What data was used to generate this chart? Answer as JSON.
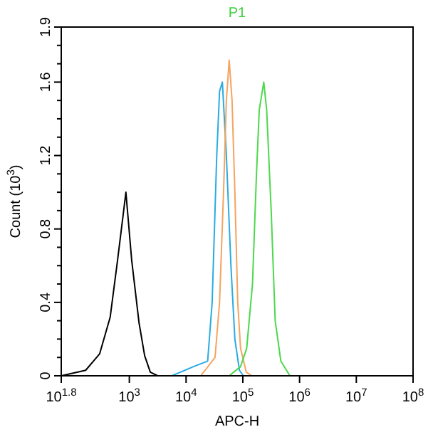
{
  "chart_data": {
    "type": "line",
    "title": "P1",
    "xlabel": "APC-H",
    "ylabel": "Count (10$^{3}$)",
    "log": "x",
    "xlim": [
      63.1,
      100000000
    ],
    "ylim": [
      0,
      1.9
    ],
    "xticks": [
      {
        "value": 63.1,
        "label": "10$^{1.8}$"
      },
      {
        "value": 1000,
        "label": "10$^{3}$"
      },
      {
        "value": 10000,
        "label": "10$^{4}$"
      },
      {
        "value": 100000,
        "label": "10$^{5}$"
      },
      {
        "value": 1000000,
        "label": "10$^{6}$"
      },
      {
        "value": 10000000,
        "label": "10$^{7}$"
      },
      {
        "value": 100000000,
        "label": "10$^{8}$"
      }
    ],
    "yticks": [
      0,
      {
        "value": 0.1,
        "label": null
      },
      {
        "value": 0.2,
        "label": null
      },
      {
        "value": 0.3,
        "label": null
      },
      0.4,
      {
        "value": 0.5,
        "label": null
      },
      {
        "value": 0.6,
        "label": null
      },
      {
        "value": 0.7,
        "label": null
      },
      0.8,
      {
        "value": 0.9,
        "label": null
      },
      {
        "value": 1.0,
        "label": null
      },
      {
        "value": 1.1,
        "label": null
      },
      1.2,
      {
        "value": 1.3,
        "label": null
      },
      {
        "value": 1.4,
        "label": null
      },
      {
        "value": 1.5,
        "label": null
      },
      1.6,
      {
        "value": 1.7,
        "label": null
      },
      {
        "value": 1.8,
        "label": null
      },
      1.9
    ],
    "grid": false,
    "marker": "none",
    "line_style": "solid",
    "series": [
      {
        "color": "#000000",
        "x": [
          63.1,
          170,
          300,
          460,
          620,
          780,
          870,
          1100,
          1480,
          1860,
          2340,
          3160
        ],
        "values": [
          0,
          0.03,
          0.12,
          0.32,
          0.63,
          0.88,
          1.0,
          0.63,
          0.29,
          0.11,
          0.02,
          0
        ]
      },
      {
        "color": "#29abe2",
        "x": [
          5600,
          13500,
          24000,
          28800,
          34700,
          38900,
          43600,
          51300,
          61700,
          72400,
          87100,
          102000
        ],
        "values": [
          0,
          0.05,
          0.08,
          0.4,
          1.2,
          1.55,
          1.6,
          1.2,
          0.6,
          0.2,
          0.03,
          0
        ]
      },
      {
        "color": "#f4a460",
        "x": [
          18200,
          32400,
          38900,
          45700,
          51300,
          57500,
          64600,
          72400,
          81300,
          91200,
          115000,
          145000
        ],
        "values": [
          0,
          0.1,
          0.4,
          1.0,
          1.5,
          1.72,
          1.5,
          1.0,
          0.4,
          0.15,
          0.02,
          0
        ]
      },
      {
        "color": "#4cd94c",
        "x": [
          57500,
          91200,
          117000,
          148000,
          174000,
          195000,
          234000,
          263000,
          316000,
          372000,
          468000,
          676000
        ],
        "values": [
          0,
          0.05,
          0.15,
          0.5,
          1.1,
          1.45,
          1.6,
          1.45,
          0.9,
          0.3,
          0.08,
          0
        ]
      }
    ]
  }
}
